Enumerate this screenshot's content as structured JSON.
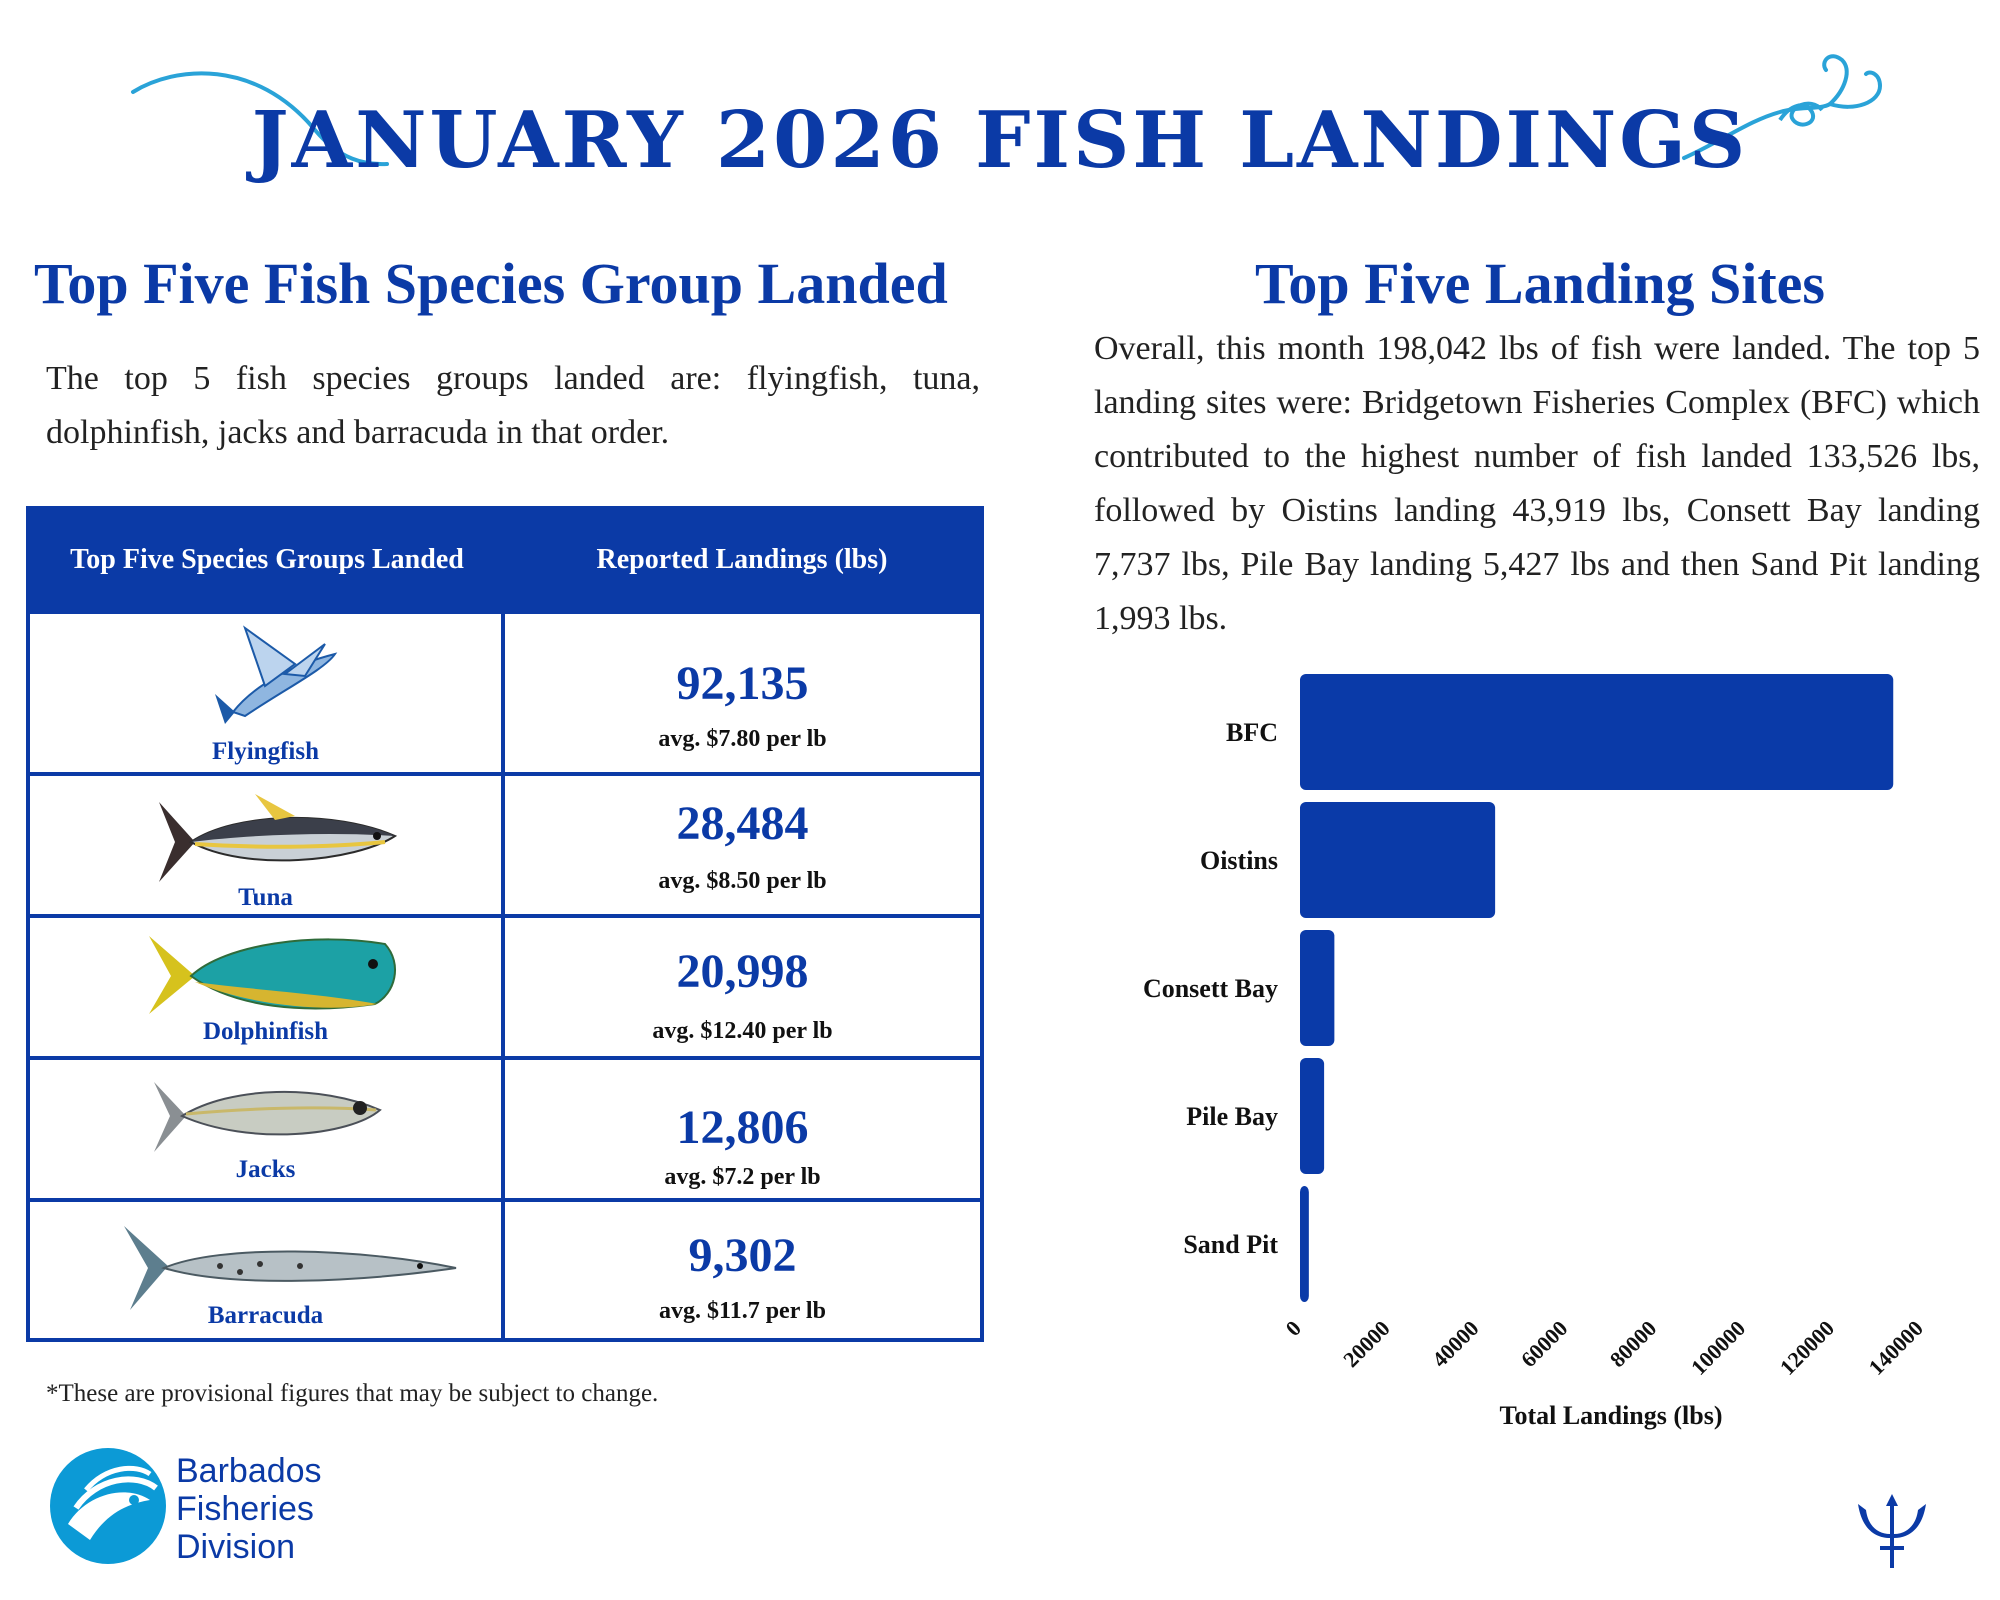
{
  "header": {
    "title": "JANUARY 2026 FISH LANDINGS"
  },
  "left": {
    "title": "Top Five Fish Species Group Landed",
    "paragraph": "The top 5 fish species groups landed are: flyingfish, tuna, dolphinfish, jacks and barracuda in that order.",
    "table": {
      "headers": [
        "Top Five Species Groups Landed",
        "Reported Landings (lbs)"
      ],
      "rows": [
        {
          "species": "Flyingfish",
          "landings": "92,135",
          "price": "avg. $7.80 per lb"
        },
        {
          "species": "Tuna",
          "landings": "28,484",
          "price": "avg. $8.50 per lb"
        },
        {
          "species": "Dolphinfish",
          "landings": "20,998",
          "price": "avg. $12.40  per lb"
        },
        {
          "species": "Jacks",
          "landings": "12,806",
          "price": "avg. $7.2 per lb"
        },
        {
          "species": "Barracuda",
          "landings": "9,302",
          "price": "avg. $11.7 per lb"
        }
      ]
    },
    "footnote": "*These are provisional figures that may be subject to change."
  },
  "right": {
    "title": "Top Five Landing Sites",
    "paragraph": "Overall, this month 198,042 lbs of fish were landed. The top 5 landing sites were: Bridgetown Fisheries Complex (BFC) which contributed to the highest number of fish landed 133,526 lbs, followed by Oistins landing 43,919 lbs, Consett Bay landing 7,737 lbs, Pile Bay landing 5,427 lbs and then Sand Pit landing 1,993 lbs."
  },
  "logo": {
    "line1": "Barbados",
    "line2": "Fisheries",
    "line3": "Division"
  },
  "colors": {
    "brand": "#0b3aa6",
    "light_blue": "#2aa3d8",
    "bar": "#0a3aa8"
  },
  "icons": [
    "fishing-line-icon",
    "fishing-hook-icon",
    "trident-icon",
    "fish-logo-icon"
  ],
  "chart_data": {
    "type": "bar",
    "orientation": "horizontal",
    "categories": [
      "BFC",
      "Oistins",
      "Consett Bay",
      "Pile Bay",
      "Sand Pit"
    ],
    "values": [
      133526,
      43919,
      7737,
      5427,
      1993
    ],
    "xlabel": "Total Landings (lbs)",
    "ylabel": "",
    "xlim": [
      0,
      140000
    ],
    "xticks": [
      0,
      20000,
      40000,
      60000,
      80000,
      100000,
      120000,
      140000
    ],
    "xtick_labels": [
      "0",
      "20000",
      "40000",
      "60000",
      "80000",
      "100000",
      "120000",
      "140000"
    ],
    "grid": false
  }
}
